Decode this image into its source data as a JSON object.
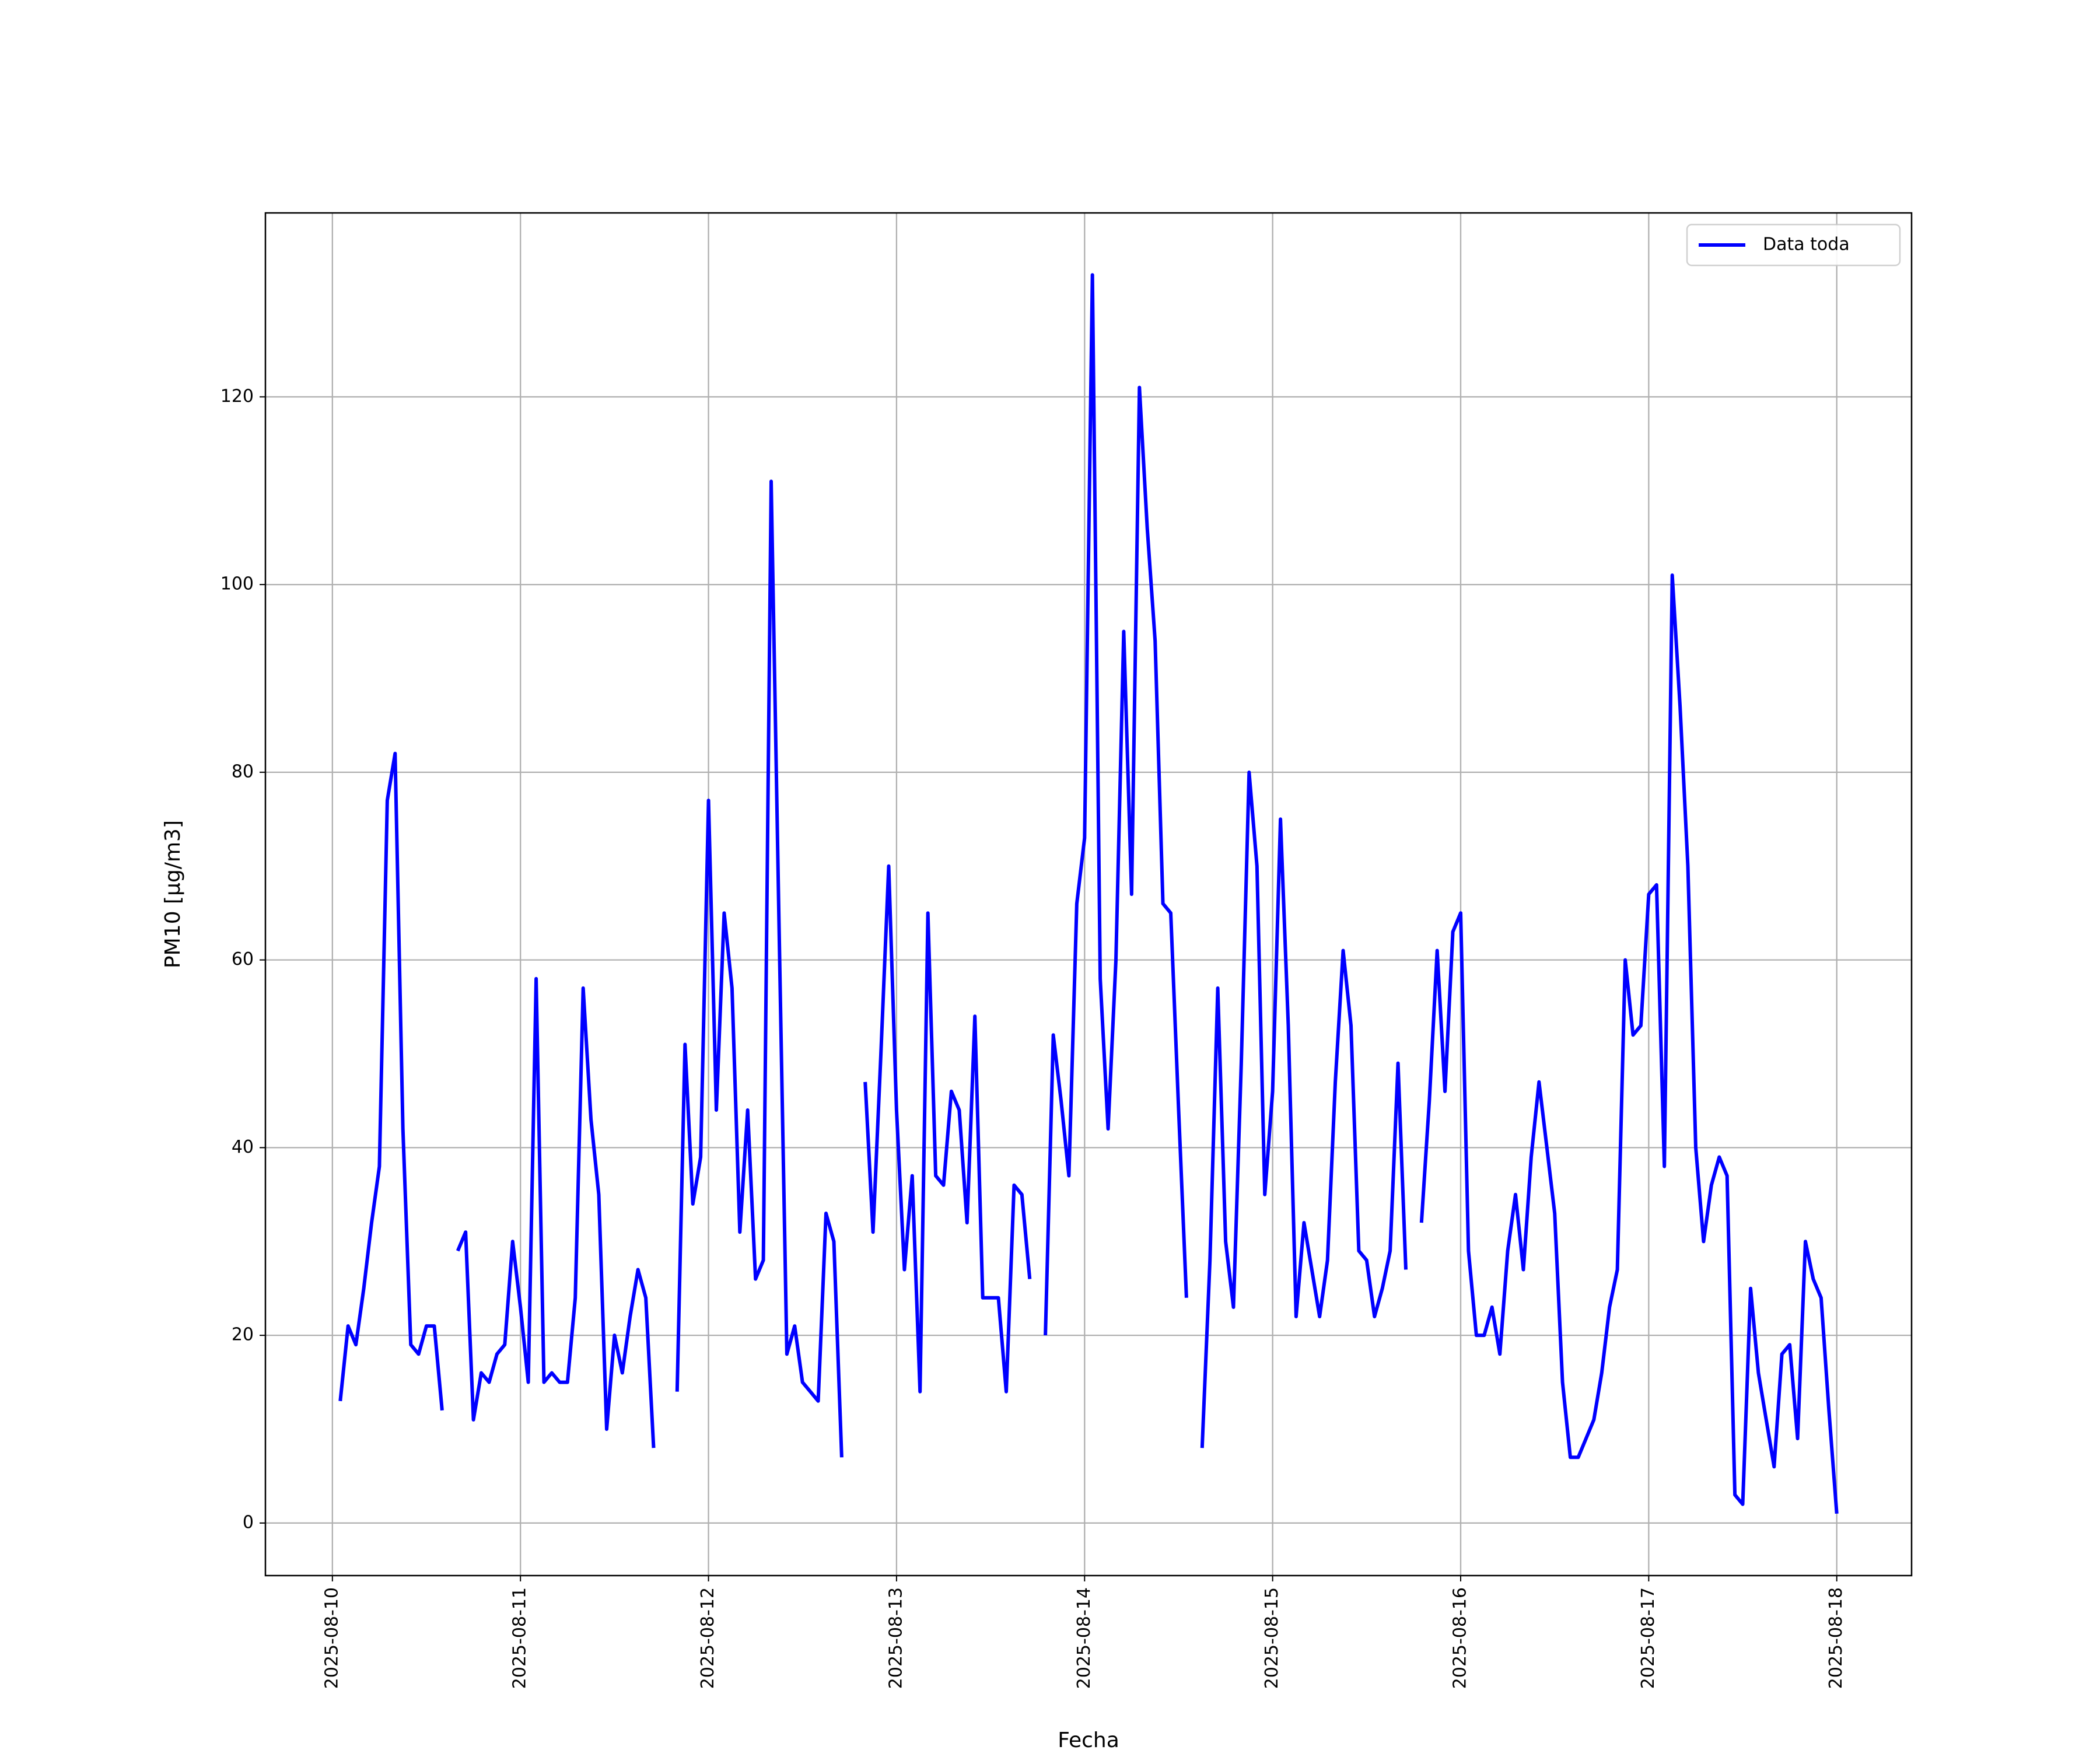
{
  "chart_data": {
    "type": "line",
    "x_label": "Fecha",
    "y_label": "PM10 [μg/m3]",
    "x": [
      "2025-08-10 01:00",
      "2025-08-10 02:00",
      "2025-08-10 03:00",
      "2025-08-10 04:00",
      "2025-08-10 05:00",
      "2025-08-10 06:00",
      "2025-08-10 07:00",
      "2025-08-10 08:00",
      "2025-08-10 09:00",
      "2025-08-10 10:00",
      "2025-08-10 11:00",
      "2025-08-10 12:00",
      "2025-08-10 13:00",
      "2025-08-10 14:00",
      "2025-08-10 15:00",
      "2025-08-10 16:00",
      "2025-08-10 17:00",
      "2025-08-10 18:00",
      "2025-08-10 19:00",
      "2025-08-10 20:00",
      "2025-08-10 21:00",
      "2025-08-10 22:00",
      "2025-08-10 23:00",
      "2025-08-11 00:00",
      "2025-08-11 01:00",
      "2025-08-11 02:00",
      "2025-08-11 03:00",
      "2025-08-11 04:00",
      "2025-08-11 05:00",
      "2025-08-11 06:00",
      "2025-08-11 07:00",
      "2025-08-11 08:00",
      "2025-08-11 09:00",
      "2025-08-11 10:00",
      "2025-08-11 11:00",
      "2025-08-11 12:00",
      "2025-08-11 13:00",
      "2025-08-11 14:00",
      "2025-08-11 15:00",
      "2025-08-11 16:00",
      "2025-08-11 17:00",
      "2025-08-11 18:00",
      "2025-08-11 19:00",
      "2025-08-11 20:00",
      "2025-08-11 21:00",
      "2025-08-11 22:00",
      "2025-08-11 23:00",
      "2025-08-12 00:00",
      "2025-08-12 01:00",
      "2025-08-12 02:00",
      "2025-08-12 03:00",
      "2025-08-12 04:00",
      "2025-08-12 05:00",
      "2025-08-12 06:00",
      "2025-08-12 07:00",
      "2025-08-12 08:00",
      "2025-08-12 09:00",
      "2025-08-12 10:00",
      "2025-08-12 11:00",
      "2025-08-12 12:00",
      "2025-08-12 13:00",
      "2025-08-12 14:00",
      "2025-08-12 15:00",
      "2025-08-12 16:00",
      "2025-08-12 17:00",
      "2025-08-12 18:00",
      "2025-08-12 19:00",
      "2025-08-12 20:00",
      "2025-08-12 21:00",
      "2025-08-12 22:00",
      "2025-08-12 23:00",
      "2025-08-13 00:00",
      "2025-08-13 01:00",
      "2025-08-13 02:00",
      "2025-08-13 03:00",
      "2025-08-13 04:00",
      "2025-08-13 05:00",
      "2025-08-13 06:00",
      "2025-08-13 07:00",
      "2025-08-13 08:00",
      "2025-08-13 09:00",
      "2025-08-13 10:00",
      "2025-08-13 11:00",
      "2025-08-13 12:00",
      "2025-08-13 13:00",
      "2025-08-13 14:00",
      "2025-08-13 15:00",
      "2025-08-13 16:00",
      "2025-08-13 17:00",
      "2025-08-13 18:00",
      "2025-08-13 19:00",
      "2025-08-13 20:00",
      "2025-08-13 21:00",
      "2025-08-13 22:00",
      "2025-08-13 23:00",
      "2025-08-14 00:00",
      "2025-08-14 01:00",
      "2025-08-14 02:00",
      "2025-08-14 03:00",
      "2025-08-14 04:00",
      "2025-08-14 05:00",
      "2025-08-14 06:00",
      "2025-08-14 07:00",
      "2025-08-14 08:00",
      "2025-08-14 09:00",
      "2025-08-14 10:00",
      "2025-08-14 11:00",
      "2025-08-14 12:00",
      "2025-08-14 13:00",
      "2025-08-14 14:00",
      "2025-08-14 15:00",
      "2025-08-14 16:00",
      "2025-08-14 17:00",
      "2025-08-14 18:00",
      "2025-08-14 19:00",
      "2025-08-14 20:00",
      "2025-08-14 21:00",
      "2025-08-14 22:00",
      "2025-08-14 23:00",
      "2025-08-15 00:00",
      "2025-08-15 01:00",
      "2025-08-15 02:00",
      "2025-08-15 03:00",
      "2025-08-15 04:00",
      "2025-08-15 05:00",
      "2025-08-15 06:00",
      "2025-08-15 07:00",
      "2025-08-15 08:00",
      "2025-08-15 09:00",
      "2025-08-15 10:00",
      "2025-08-15 11:00",
      "2025-08-15 12:00",
      "2025-08-15 13:00",
      "2025-08-15 14:00",
      "2025-08-15 15:00",
      "2025-08-15 16:00",
      "2025-08-15 17:00",
      "2025-08-15 18:00",
      "2025-08-15 19:00",
      "2025-08-15 20:00",
      "2025-08-15 21:00",
      "2025-08-15 22:00",
      "2025-08-15 23:00",
      "2025-08-16 00:00",
      "2025-08-16 01:00",
      "2025-08-16 02:00",
      "2025-08-16 03:00",
      "2025-08-16 04:00",
      "2025-08-16 05:00",
      "2025-08-16 06:00",
      "2025-08-16 07:00",
      "2025-08-16 08:00",
      "2025-08-16 09:00",
      "2025-08-16 10:00",
      "2025-08-16 11:00",
      "2025-08-16 12:00",
      "2025-08-16 13:00",
      "2025-08-16 14:00",
      "2025-08-16 15:00",
      "2025-08-16 16:00",
      "2025-08-16 17:00",
      "2025-08-16 18:00",
      "2025-08-16 19:00",
      "2025-08-16 20:00",
      "2025-08-16 21:00",
      "2025-08-16 22:00",
      "2025-08-16 23:00",
      "2025-08-17 00:00",
      "2025-08-17 01:00",
      "2025-08-17 02:00",
      "2025-08-17 03:00",
      "2025-08-17 04:00",
      "2025-08-17 05:00",
      "2025-08-17 06:00",
      "2025-08-17 07:00",
      "2025-08-17 08:00",
      "2025-08-17 09:00",
      "2025-08-17 10:00",
      "2025-08-17 11:00",
      "2025-08-17 12:00",
      "2025-08-17 13:00",
      "2025-08-17 14:00",
      "2025-08-17 15:00",
      "2025-08-17 16:00",
      "2025-08-17 17:00",
      "2025-08-17 18:00",
      "2025-08-17 19:00",
      "2025-08-17 20:00",
      "2025-08-17 21:00",
      "2025-08-17 22:00",
      "2025-08-17 23:00",
      "2025-08-18 00:00"
    ],
    "series": [
      {
        "name": "Data toda",
        "color": "#0000ff",
        "values": [
          13,
          21,
          19,
          25,
          32,
          38,
          77,
          82,
          42,
          19,
          18,
          21,
          21,
          12,
          null,
          29,
          31,
          11,
          16,
          15,
          18,
          19,
          30,
          23,
          15,
          58,
          15,
          16,
          15,
          15,
          24,
          57,
          43,
          35,
          10,
          20,
          16,
          22,
          27,
          24,
          8,
          null,
          null,
          14,
          51,
          34,
          39,
          77,
          44,
          65,
          57,
          31,
          44,
          26,
          28,
          111,
          64,
          18,
          21,
          15,
          14,
          13,
          33,
          30,
          7,
          null,
          null,
          47,
          31,
          50,
          70,
          44,
          27,
          37,
          14,
          65,
          37,
          36,
          46,
          44,
          32,
          54,
          24,
          24,
          24,
          14,
          36,
          35,
          26,
          null,
          20,
          52,
          45,
          37,
          66,
          73,
          133,
          58,
          42,
          60,
          95,
          67,
          121,
          106,
          94,
          66,
          65,
          44,
          24,
          null,
          8,
          28,
          57,
          30,
          23,
          49,
          80,
          70,
          35,
          46,
          75,
          53,
          22,
          32,
          27,
          22,
          28,
          47,
          61,
          53,
          29,
          28,
          22,
          25,
          29,
          49,
          27,
          null,
          32,
          45,
          61,
          46,
          63,
          65,
          29,
          20,
          20,
          23,
          18,
          29,
          35,
          27,
          39,
          47,
          40,
          33,
          15,
          7,
          7,
          9,
          11,
          16,
          23,
          27,
          60,
          52,
          53,
          67,
          68,
          38,
          101,
          87,
          70,
          40,
          30,
          36,
          39,
          37,
          3,
          2,
          25,
          16,
          11,
          6,
          18,
          19,
          9,
          30,
          26,
          24,
          12,
          1
        ]
      }
    ],
    "xlim": [
      "2025-08-09 15:27",
      "2025-08-18 09:33"
    ],
    "xticks": [
      "2025-08-10",
      "2025-08-11",
      "2025-08-12",
      "2025-08-13",
      "2025-08-14",
      "2025-08-15",
      "2025-08-16",
      "2025-08-17",
      "2025-08-18"
    ],
    "ylim": [
      -5.6,
      139.6
    ],
    "yticks": [
      0,
      20,
      40,
      60,
      80,
      100,
      120
    ],
    "grid": true,
    "legend": "upper right"
  }
}
